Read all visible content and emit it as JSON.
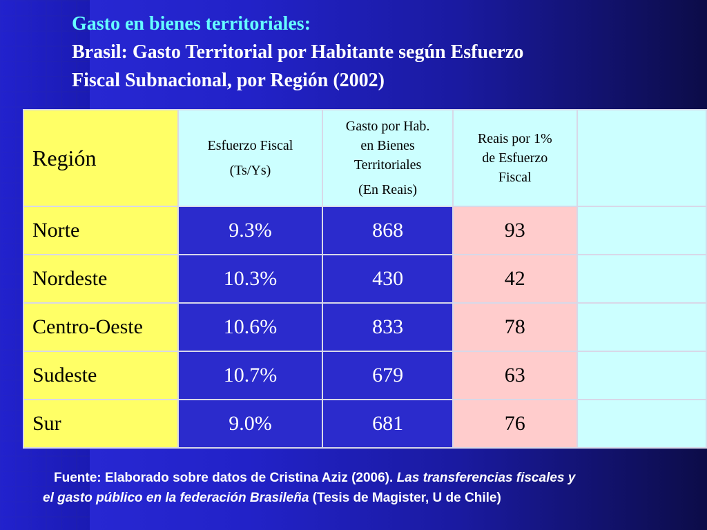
{
  "title": {
    "line1": "Gasto en bienes territoriales:",
    "line2": "Brasil: Gasto Territorial por Habitante según Esfuerzo",
    "line3": "Fiscal Subnacional, por Región (2002)"
  },
  "table": {
    "headers": {
      "region": "Región",
      "esfuerzo_l1": "Esfuerzo Fiscal",
      "esfuerzo_l2": "(Ts/Ys)",
      "gasto_l1": "Gasto por Hab.",
      "gasto_l2": "en Bienes",
      "gasto_l3": "Territoriales",
      "gasto_l4": "(En Reais)",
      "reais_l1": "Reais por 1%",
      "reais_l2": "de Esfuerzo",
      "reais_l3": "Fiscal",
      "empty": ""
    },
    "rows": [
      {
        "region": "Norte",
        "esfuerzo": "9.3%",
        "gasto": "868",
        "reais": "93"
      },
      {
        "region": "Nordeste",
        "esfuerzo": "10.3%",
        "gasto": "430",
        "reais": "42"
      },
      {
        "region": "Centro-Oeste",
        "esfuerzo": "10.6%",
        "gasto": "833",
        "reais": "78"
      },
      {
        "region": "Sudeste",
        "esfuerzo": "10.7%",
        "gasto": "679",
        "reais": "63"
      },
      {
        "region": "Sur",
        "esfuerzo": "9.0%",
        "gasto": "681",
        "reais": "76"
      }
    ]
  },
  "footer": {
    "prefix": "Fuente: Elaborado sobre datos de Cristina Aziz (2006). ",
    "italic_1": "Las transferencias fiscales y",
    "italic_2": "el gasto público en la federación Brasileña",
    "suffix": " (Tesis de Magister, U de Chile)"
  },
  "colors": {
    "background": "#2222c8",
    "title_first_line": "#66ffff",
    "region_column": "#ffff66",
    "header_cells": "#ccffff",
    "data_cells": "#2b2bcc",
    "reais_cells": "#ffcccc"
  }
}
